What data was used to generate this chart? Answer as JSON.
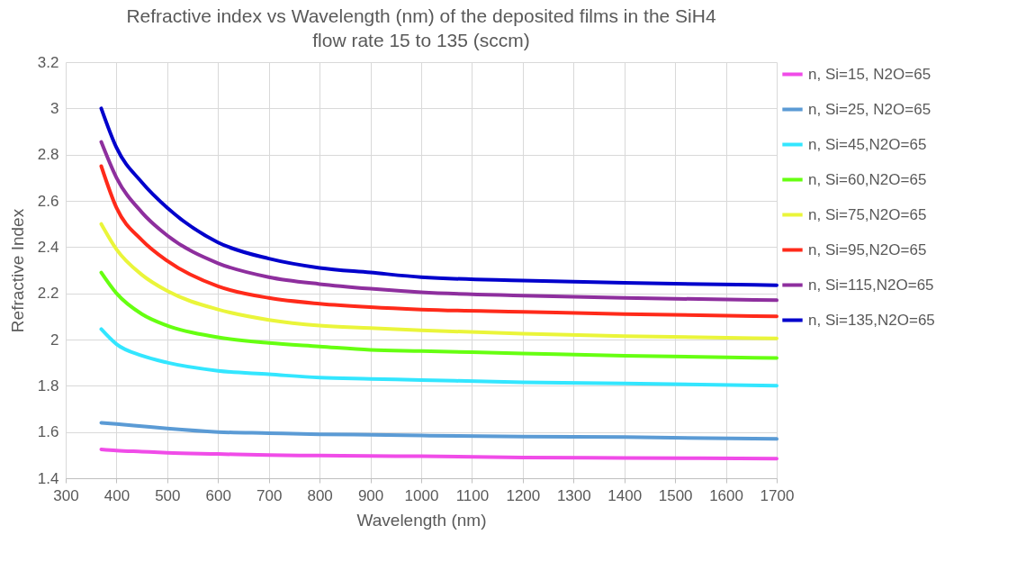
{
  "chart_data": {
    "type": "line",
    "title": "Refractive index vs Wavelength (nm) of the deposited films in the SiH4  flow rate 15 to 135 (sccm)",
    "xlabel": "Wavelength (nm)",
    "ylabel": "Refractive Index",
    "x": [
      370,
      400,
      450,
      500,
      600,
      700,
      800,
      900,
      1000,
      1200,
      1400,
      1700
    ],
    "series": [
      {
        "name": "n, Si=15, N2O=65",
        "color": "#f04ce8",
        "values": [
          1.525,
          1.52,
          1.515,
          1.51,
          1.505,
          1.5,
          1.498,
          1.496,
          1.495,
          1.49,
          1.488,
          1.485
        ]
      },
      {
        "name": "n, Si=25, N2O=65",
        "color": "#5b9bd5",
        "values": [
          1.64,
          1.635,
          1.625,
          1.615,
          1.6,
          1.595,
          1.59,
          1.588,
          1.585,
          1.58,
          1.578,
          1.57
        ]
      },
      {
        "name": "n, Si=45,N2O=65",
        "color": "#33e6ff",
        "values": [
          2.045,
          1.98,
          1.93,
          1.9,
          1.865,
          1.85,
          1.835,
          1.83,
          1.825,
          1.815,
          1.81,
          1.8
        ]
      },
      {
        "name": "n, Si=60,N2O=65",
        "color": "#66ff11",
        "values": [
          2.29,
          2.2,
          2.11,
          2.06,
          2.01,
          1.985,
          1.97,
          1.955,
          1.95,
          1.94,
          1.93,
          1.92
        ]
      },
      {
        "name": "n, Si=75,N2O=65",
        "color": "#eaf53a",
        "values": [
          2.5,
          2.39,
          2.28,
          2.21,
          2.13,
          2.085,
          2.06,
          2.05,
          2.04,
          2.025,
          2.015,
          2.005
        ]
      },
      {
        "name": "n, Si=95,N2O=65",
        "color": "#ff2a1a",
        "values": [
          2.75,
          2.57,
          2.43,
          2.34,
          2.23,
          2.18,
          2.155,
          2.14,
          2.13,
          2.12,
          2.11,
          2.1
        ]
      },
      {
        "name": "n, Si=115,N2O=65",
        "color": "#8e2f9e",
        "values": [
          2.855,
          2.7,
          2.55,
          2.45,
          2.33,
          2.27,
          2.24,
          2.22,
          2.205,
          2.19,
          2.18,
          2.17
        ]
      },
      {
        "name": "n, Si=135,N2O=65",
        "color": "#0000cc",
        "values": [
          3.0,
          2.83,
          2.68,
          2.57,
          2.42,
          2.35,
          2.31,
          2.29,
          2.27,
          2.255,
          2.245,
          2.235
        ]
      }
    ],
    "xlim": [
      300,
      1700
    ],
    "xticks": [
      300,
      400,
      500,
      600,
      700,
      800,
      900,
      1000,
      1100,
      1200,
      1300,
      1400,
      1500,
      1600,
      1700
    ],
    "ylim": [
      1.4,
      3.2
    ],
    "yticks": [
      1.4,
      1.6,
      1.8,
      2,
      2.2,
      2.4,
      2.6,
      2.8,
      3,
      3.2
    ],
    "grid": true,
    "legend": "right",
    "marker": "none",
    "line_style": "solid"
  }
}
